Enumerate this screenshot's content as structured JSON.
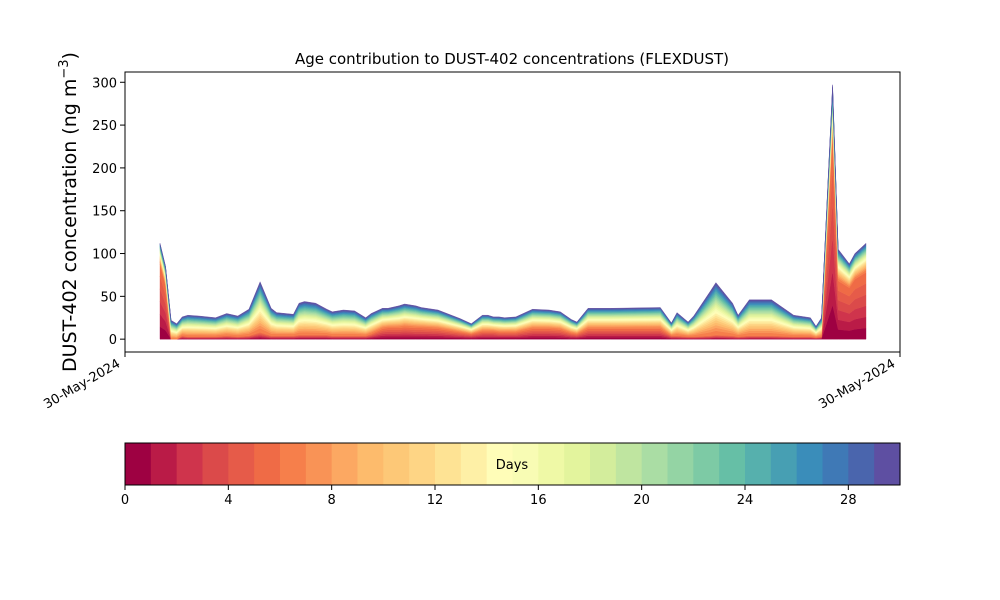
{
  "chart_data": {
    "type": "area",
    "stacked": true,
    "title": "Age contribution to DUST-402 concentrations (FLEXDUST)",
    "ylabel": "DUST-402 concentration (ng m",
    "ylabel_superscript": "−3",
    "ylabel_close": ")",
    "xlabel": "",
    "ylim": [
      -15,
      312
    ],
    "yticks": [
      0,
      50,
      100,
      150,
      200,
      250,
      300
    ],
    "xtick_labels": [
      "30-May-2024",
      "30-May-2024"
    ],
    "grid": false,
    "x_index": [
      0,
      1,
      2,
      3,
      4,
      5,
      7,
      10,
      12,
      14,
      16,
      18,
      20,
      21,
      24,
      25,
      26,
      28,
      30,
      31,
      33,
      35,
      37,
      38,
      40,
      41,
      43,
      44,
      46,
      47,
      50,
      54,
      56,
      58,
      59,
      60,
      61,
      62,
      64,
      67,
      70,
      72,
      74,
      75,
      77,
      81,
      90,
      92,
      93,
      95,
      96,
      99,
      100,
      103,
      104,
      106,
      110,
      114,
      117,
      118,
      119,
      121,
      122,
      124,
      125,
      127
    ],
    "total": [
      112,
      85,
      22,
      18,
      26,
      28,
      27,
      25,
      30,
      27,
      35,
      67,
      36,
      31,
      29,
      42,
      44,
      42,
      35,
      32,
      34,
      33,
      25,
      30,
      36,
      36,
      39,
      41,
      39,
      37,
      34,
      24,
      18,
      28,
      28,
      26,
      26,
      25,
      26,
      35,
      34,
      32,
      23,
      20,
      36,
      36,
      37,
      19,
      31,
      20,
      27,
      56,
      66,
      42,
      28,
      46,
      46,
      28,
      25,
      15,
      25,
      297,
      105,
      88,
      100,
      112
    ],
    "young": [
      88,
      62,
      0,
      0,
      4,
      3,
      3,
      3,
      4,
      3,
      4,
      8,
      4,
      4,
      4,
      5,
      5,
      5,
      5,
      4,
      4,
      4,
      4,
      6,
      12,
      13,
      13,
      14,
      13,
      13,
      12,
      8,
      6,
      9,
      9,
      9,
      8,
      8,
      8,
      12,
      12,
      11,
      7,
      6,
      12,
      12,
      12,
      4,
      4,
      3,
      3,
      4,
      5,
      4,
      3,
      4,
      4,
      3,
      3,
      2,
      3,
      240,
      68,
      60,
      70,
      78
    ],
    "colorbar": {
      "label": "Days",
      "ticks": [
        0,
        4,
        8,
        12,
        16,
        20,
        24,
        28
      ],
      "min": 0,
      "max": 30,
      "colors": [
        "#9e0142",
        "#ba1b47",
        "#cf344c",
        "#db4a4a",
        "#e65b49",
        "#ef6b46",
        "#f67f4b",
        "#f99356",
        "#fca862",
        "#fdbb6c",
        "#fdc877",
        "#fed585",
        "#fee394",
        "#fef0a6",
        "#fffdb8",
        "#f8fcb4",
        "#eff9a6",
        "#e3f49d",
        "#d3ed9c",
        "#bfe5a0",
        "#aadda4",
        "#94d4a4",
        "#7dcaa5",
        "#66bfa6",
        "#56b0ad",
        "#479fb3",
        "#3a8dba",
        "#3f79b6",
        "#4a65ad",
        "#5e4fa2"
      ]
    }
  }
}
